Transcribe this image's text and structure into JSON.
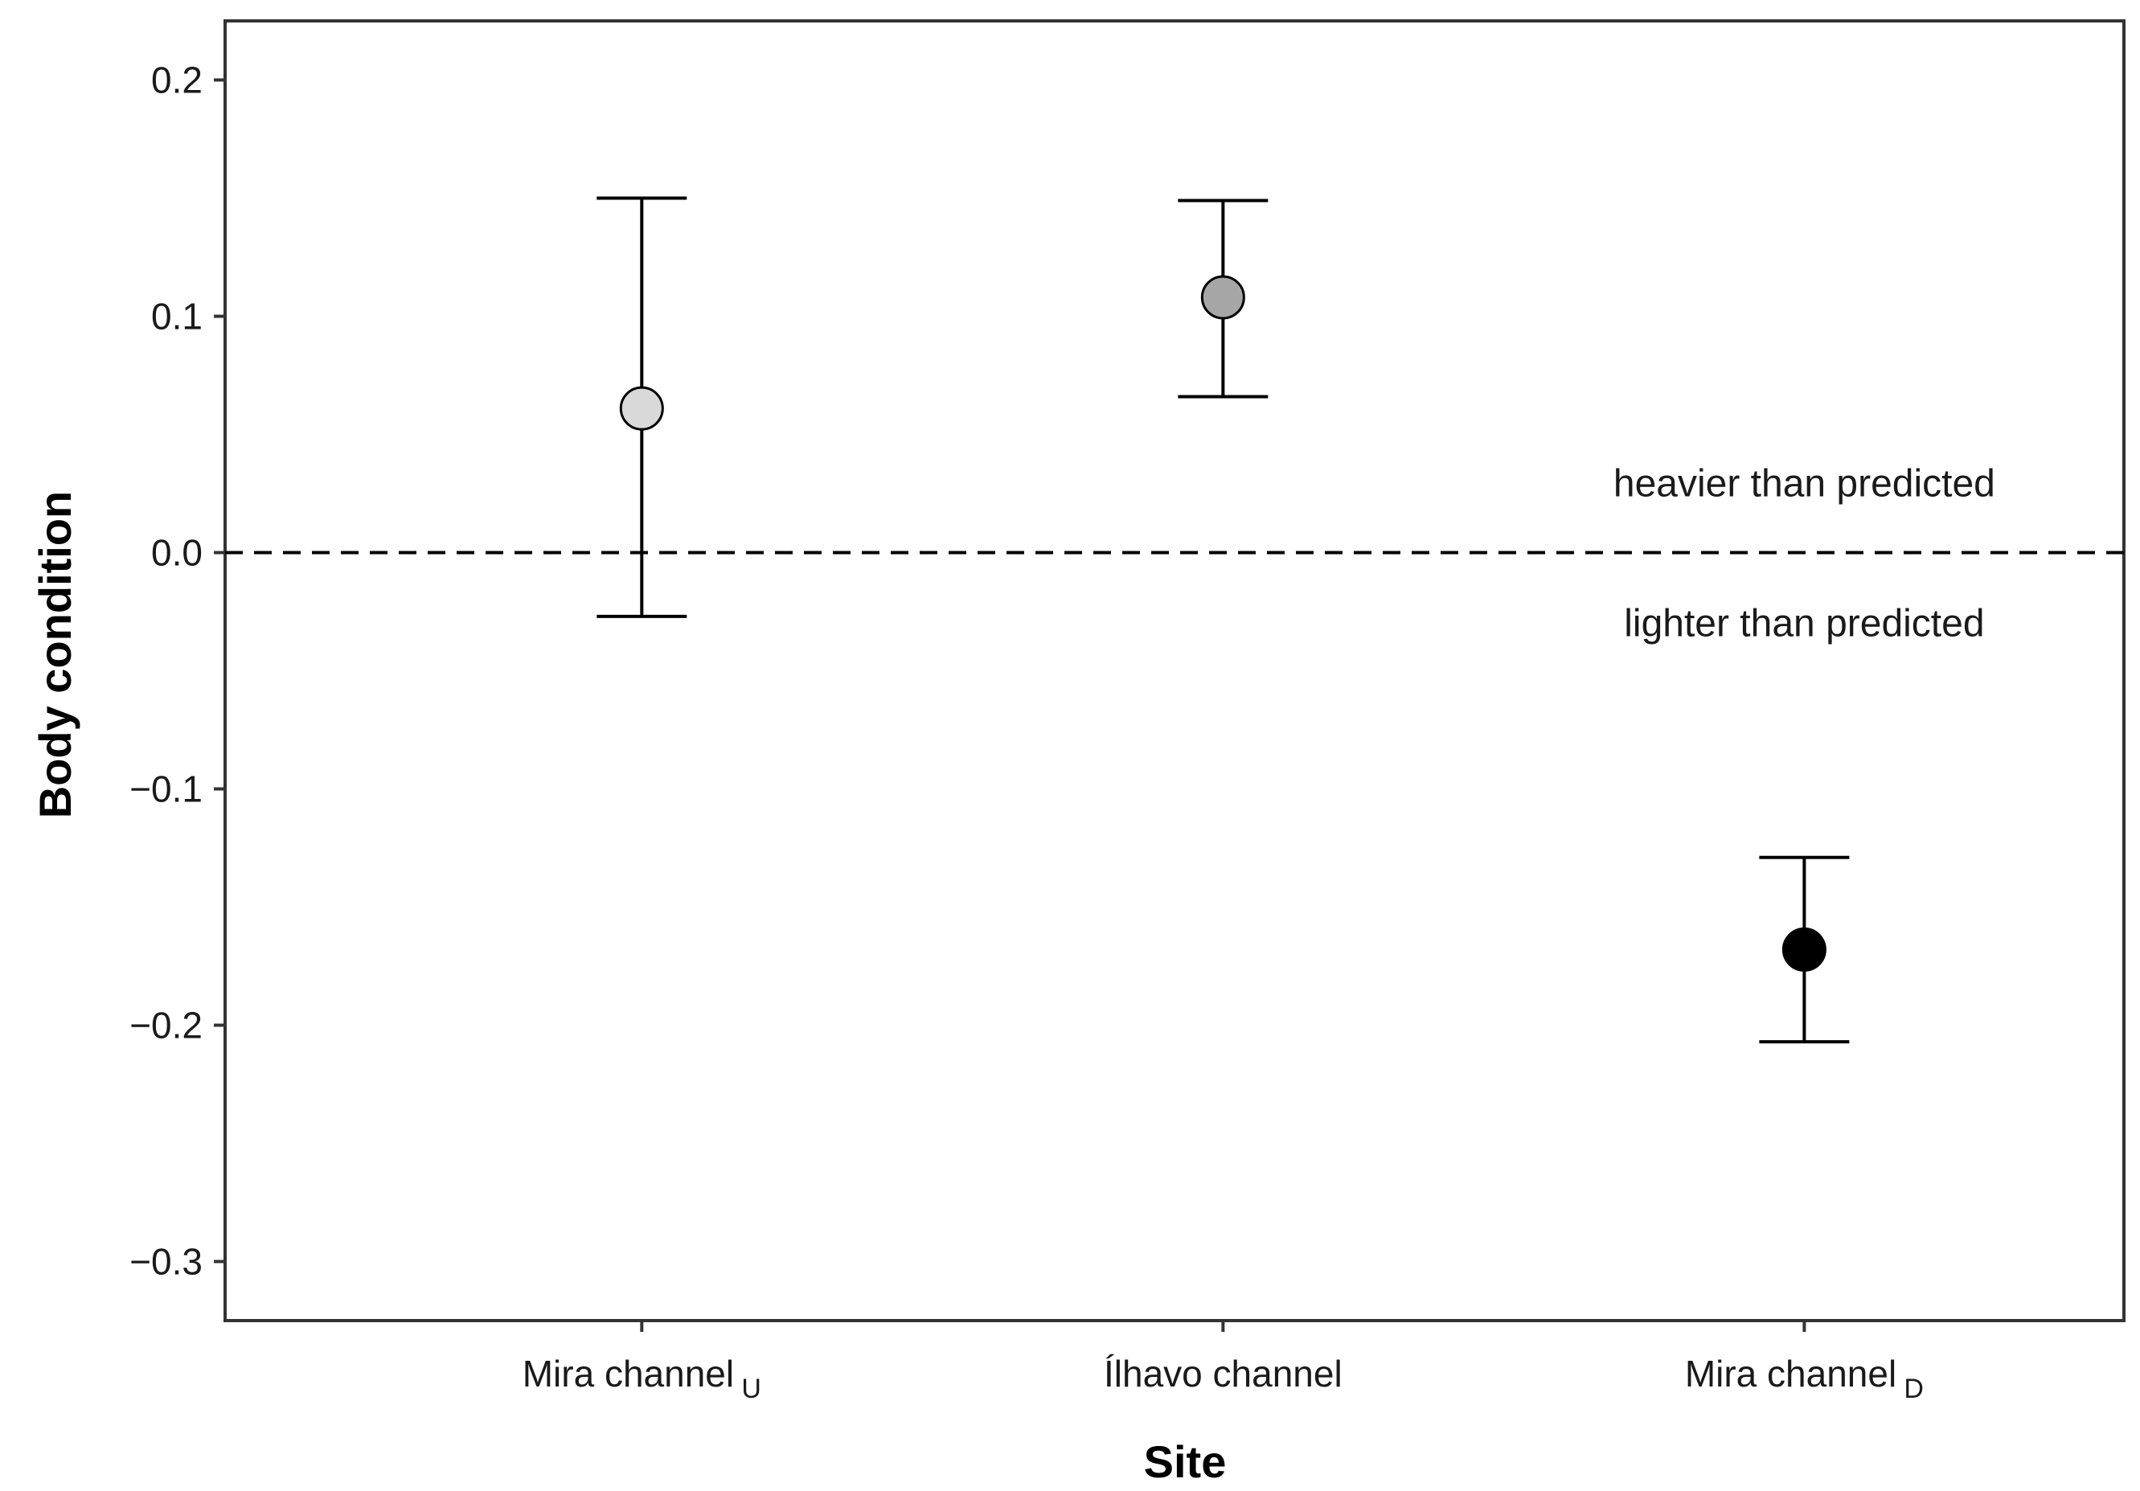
{
  "chart_data": {
    "type": "scatter",
    "title": "",
    "xlabel": "Site",
    "ylabel": "Body condition",
    "ylim": [
      -0.325,
      0.225
    ],
    "yticks": [
      0.2,
      0.1,
      0.0,
      -0.1,
      -0.2,
      -0.3
    ],
    "ytick_labels": [
      "0.2",
      "0.1",
      "0.0",
      "−0.1",
      "−0.2",
      "−0.3"
    ],
    "reference_line": {
      "y": 0.0,
      "style": "dashed"
    },
    "grid": false,
    "legend": "none",
    "categories": [
      {
        "label": "Mira channel",
        "subscript": "U",
        "value": 0.061,
        "lower": -0.027,
        "upper": 0.15,
        "fill": "#d9d9d9"
      },
      {
        "label": "Ílhavo channel",
        "subscript": "",
        "value": 0.108,
        "lower": 0.066,
        "upper": 0.149,
        "fill": "#a6a6a6"
      },
      {
        "label": "Mira channel",
        "subscript": "D",
        "value": -0.168,
        "lower": -0.207,
        "upper": -0.129,
        "fill": "#000000"
      }
    ],
    "annotations": {
      "above": "heavier than predicted",
      "below": "lighter than predicted"
    }
  }
}
